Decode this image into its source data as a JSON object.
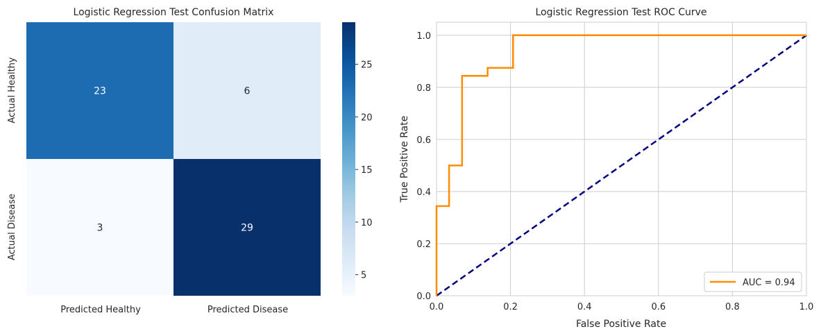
{
  "chart_data": [
    {
      "type": "heatmap",
      "title": "Logistic Regression Test Confusion Matrix",
      "row_labels": [
        "Actual Healthy",
        "Actual Disease"
      ],
      "col_labels": [
        "Predicted Healthy",
        "Predicted Disease"
      ],
      "values": [
        [
          23,
          6
        ],
        [
          3,
          29
        ]
      ],
      "colormap": "Blues",
      "colorbar": {
        "range": [
          3,
          29
        ],
        "ticks": [
          5,
          10,
          15,
          20,
          25
        ],
        "tick_labels": [
          "5",
          "10",
          "15",
          "20",
          "25"
        ]
      }
    },
    {
      "type": "line",
      "title": "Logistic Regression Test ROC Curve",
      "xlabel": "False Positive Rate",
      "ylabel": "True Positive Rate",
      "xlim": [
        0,
        1
      ],
      "ylim": [
        0,
        1.05
      ],
      "xticks": [
        0,
        0.2,
        0.4,
        0.6,
        0.8,
        1
      ],
      "xtick_labels": [
        "0.0",
        "0.2",
        "0.4",
        "0.6",
        "0.8",
        "1.0"
      ],
      "yticks": [
        0,
        0.2,
        0.4,
        0.6,
        0.8,
        1
      ],
      "ytick_labels": [
        "0.0",
        "0.2",
        "0.4",
        "0.6",
        "0.8",
        "1.0"
      ],
      "grid": true,
      "legend_position": "lower-right",
      "series": [
        {
          "name": "AUC = 0.94",
          "color": "#ff8c00",
          "style": "solid",
          "x": [
            0,
            0,
            0.034,
            0.034,
            0.069,
            0.069,
            0.138,
            0.138,
            0.207,
            0.207,
            1
          ],
          "y": [
            0,
            0.344,
            0.344,
            0.5,
            0.5,
            0.844,
            0.844,
            0.875,
            0.875,
            1,
            1
          ]
        },
        {
          "color": "#000080",
          "style": "dashed",
          "x": [
            0,
            1
          ],
          "y": [
            0,
            1
          ]
        }
      ]
    }
  ]
}
